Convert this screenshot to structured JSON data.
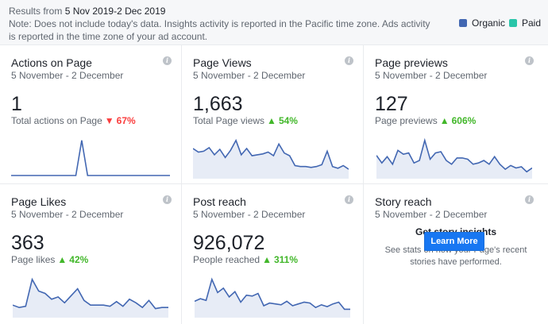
{
  "header": {
    "results_prefix": "Results from",
    "results_range": "5 Nov 2019-2 Dec 2019",
    "note": "Note: Does not include today's data. Insights activity is reported in the Pacific time zone. Ads activity is reported in the time zone of your ad account.",
    "legend": [
      {
        "label": "Organic",
        "color": "#4267b2"
      },
      {
        "label": "Paid",
        "color": "#29c5a9"
      }
    ]
  },
  "cards": [
    {
      "title": "Actions on Page",
      "range": "5 November - 2 December",
      "value": "1",
      "sub_label": "Total actions on Page",
      "change": "67%",
      "direction": "down",
      "series": [
        0,
        0,
        0,
        0,
        0,
        0,
        0,
        0,
        0,
        0,
        0,
        0,
        10,
        0,
        0,
        0,
        0,
        0,
        0,
        0,
        0,
        0,
        0,
        0,
        0,
        0,
        0,
        0
      ]
    },
    {
      "title": "Page Views",
      "range": "5 November - 2 December",
      "value": "1,663",
      "sub_label": "Total Page views",
      "change": "54%",
      "direction": "up",
      "series": [
        60,
        52,
        54,
        62,
        46,
        58,
        40,
        56,
        78,
        46,
        60,
        44,
        46,
        48,
        52,
        44,
        70,
        50,
        44,
        22,
        20,
        20,
        18,
        20,
        24,
        54,
        20,
        16,
        22,
        14
      ]
    },
    {
      "title": "Page previews",
      "range": "5 November - 2 December",
      "value": "127",
      "sub_label": "Page previews",
      "change": "606%",
      "direction": "up",
      "series": [
        32,
        20,
        30,
        18,
        40,
        34,
        36,
        20,
        24,
        56,
        26,
        36,
        38,
        24,
        18,
        28,
        28,
        26,
        18,
        20,
        24,
        18,
        30,
        18,
        10,
        16,
        12,
        14,
        6,
        12
      ]
    },
    {
      "title": "Page Likes",
      "range": "5 November - 2 December",
      "value": "363",
      "sub_label": "Page likes",
      "change": "42%",
      "direction": "up",
      "series": [
        16,
        12,
        14,
        60,
        40,
        36,
        26,
        30,
        20,
        32,
        44,
        24,
        16,
        16,
        16,
        14,
        22,
        14,
        26,
        20,
        12,
        24,
        10,
        12,
        12
      ]
    },
    {
      "title": "Post reach",
      "range": "5 November - 2 December",
      "value": "926,072",
      "sub_label": "People reached",
      "change": "311%",
      "direction": "up",
      "series": [
        30,
        36,
        32,
        80,
        50,
        60,
        40,
        52,
        28,
        44,
        42,
        48,
        20,
        26,
        24,
        22,
        30,
        20,
        24,
        28,
        26,
        16,
        22,
        18,
        24,
        28,
        12,
        12
      ]
    },
    {
      "title": "Story reach",
      "range": "5 November - 2 December",
      "story_head": "Get story insights",
      "story_text": "See stats on how your Page's recent stories have performed.",
      "button": "Learn More"
    }
  ],
  "chart_data": [
    {
      "type": "line",
      "title": "Actions on Page",
      "series": [
        {
          "values": [
            0,
            0,
            0,
            0,
            0,
            0,
            0,
            0,
            0,
            0,
            0,
            0,
            10,
            0,
            0,
            0,
            0,
            0,
            0,
            0,
            0,
            0,
            0,
            0,
            0,
            0,
            0,
            0
          ]
        }
      ]
    },
    {
      "type": "area",
      "title": "Page Views",
      "series": [
        {
          "values": [
            60,
            52,
            54,
            62,
            46,
            58,
            40,
            56,
            78,
            46,
            60,
            44,
            46,
            48,
            52,
            44,
            70,
            50,
            44,
            22,
            20,
            20,
            18,
            20,
            24,
            54,
            20,
            16,
            22,
            14
          ]
        }
      ]
    },
    {
      "type": "area",
      "title": "Page previews",
      "series": [
        {
          "values": [
            32,
            20,
            30,
            18,
            40,
            34,
            36,
            20,
            24,
            56,
            26,
            36,
            38,
            24,
            18,
            28,
            28,
            26,
            18,
            20,
            24,
            18,
            30,
            18,
            10,
            16,
            12,
            14,
            6,
            12
          ]
        }
      ]
    },
    {
      "type": "area",
      "title": "Page Likes",
      "series": [
        {
          "values": [
            16,
            12,
            14,
            60,
            40,
            36,
            26,
            30,
            20,
            32,
            44,
            24,
            16,
            16,
            16,
            14,
            22,
            14,
            26,
            20,
            12,
            24,
            10,
            12,
            12
          ]
        }
      ]
    },
    {
      "type": "area",
      "title": "Post reach",
      "series": [
        {
          "values": [
            30,
            36,
            32,
            80,
            50,
            60,
            40,
            52,
            28,
            44,
            42,
            48,
            20,
            26,
            24,
            22,
            30,
            20,
            24,
            28,
            26,
            16,
            22,
            18,
            24,
            28,
            12,
            12
          ]
        }
      ]
    }
  ]
}
